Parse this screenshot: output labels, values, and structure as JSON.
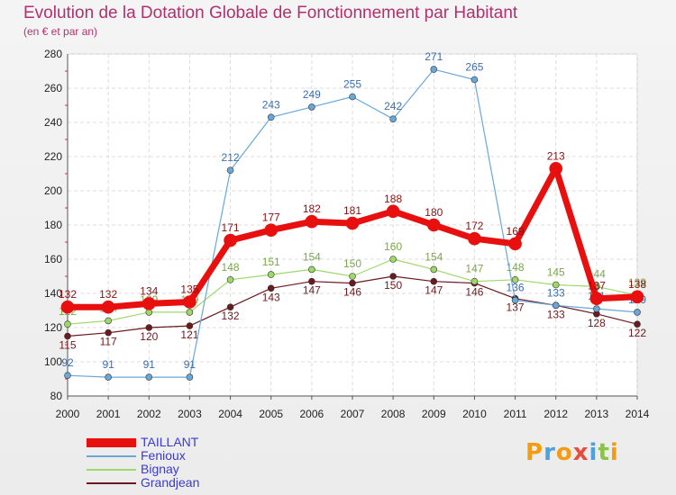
{
  "title": "Evolution de la Dotation Globale de Fonctionnement par Habitant",
  "subtitle": "(en € et par an)",
  "brand": {
    "text": "Proxiti",
    "colors": [
      "#f39c12",
      "#4aa3df",
      "#f39c12",
      "#e74c3c",
      "#4aa3df",
      "#8bc34a",
      "#f39c12"
    ]
  },
  "chart_data": {
    "type": "line",
    "x": [
      "2000",
      "2001",
      "2002",
      "2003",
      "2004",
      "2005",
      "2006",
      "2007",
      "2008",
      "2009",
      "2010",
      "2011",
      "2012",
      "2013",
      "2014"
    ],
    "ylim": [
      80,
      280
    ],
    "yticks": [
      80,
      100,
      120,
      140,
      160,
      180,
      200,
      220,
      240,
      260,
      280
    ],
    "grid": true,
    "legend": "bottom-left",
    "series": [
      {
        "name": "Grandjean",
        "color": "#6b1a1f",
        "width": 1.2,
        "marker": 3.5,
        "values": [
          115,
          117,
          120,
          121,
          132,
          143,
          147,
          146,
          150,
          147,
          146,
          137,
          133,
          128,
          122
        ],
        "labels": [
          "115",
          "117",
          "120",
          "121",
          "132",
          "143",
          "147",
          "146",
          "150",
          "147",
          "146",
          "137",
          "133",
          "128",
          "122"
        ]
      },
      {
        "name": "Bignay",
        "color": "#9fd86a",
        "width": 1.2,
        "marker": 3.5,
        "values": [
          122,
          124,
          129,
          129,
          148,
          151,
          154,
          150,
          160,
          154,
          147,
          148,
          145,
          144,
          139
        ],
        "labels": [
          "122",
          "124",
          "129",
          "129",
          "148",
          "151",
          "154",
          "150",
          "160",
          "154",
          "147",
          "148",
          "145",
          "144",
          "139"
        ]
      },
      {
        "name": "Fenioux",
        "color": "#6aa7d8",
        "width": 1.2,
        "marker": 3.5,
        "values": [
          92,
          91,
          91,
          91,
          212,
          243,
          249,
          255,
          242,
          271,
          265,
          136,
          133,
          131,
          129
        ],
        "labels": [
          "92",
          "91",
          "91",
          "91",
          "212",
          "243",
          "249",
          "255",
          "242",
          "271",
          "265",
          "136",
          "133",
          "131",
          "129"
        ]
      },
      {
        "name": "TAILLANT",
        "color": "#e8100e",
        "width": 7,
        "marker": 7,
        "values": [
          132,
          132,
          134,
          135,
          171,
          177,
          182,
          181,
          188,
          180,
          172,
          169,
          213,
          137,
          138
        ],
        "labels": [
          "132",
          "132",
          "134",
          "135",
          "171",
          "177",
          "182",
          "181",
          "188",
          "180",
          "172",
          "169",
          "213",
          "137",
          "138"
        ]
      }
    ]
  }
}
